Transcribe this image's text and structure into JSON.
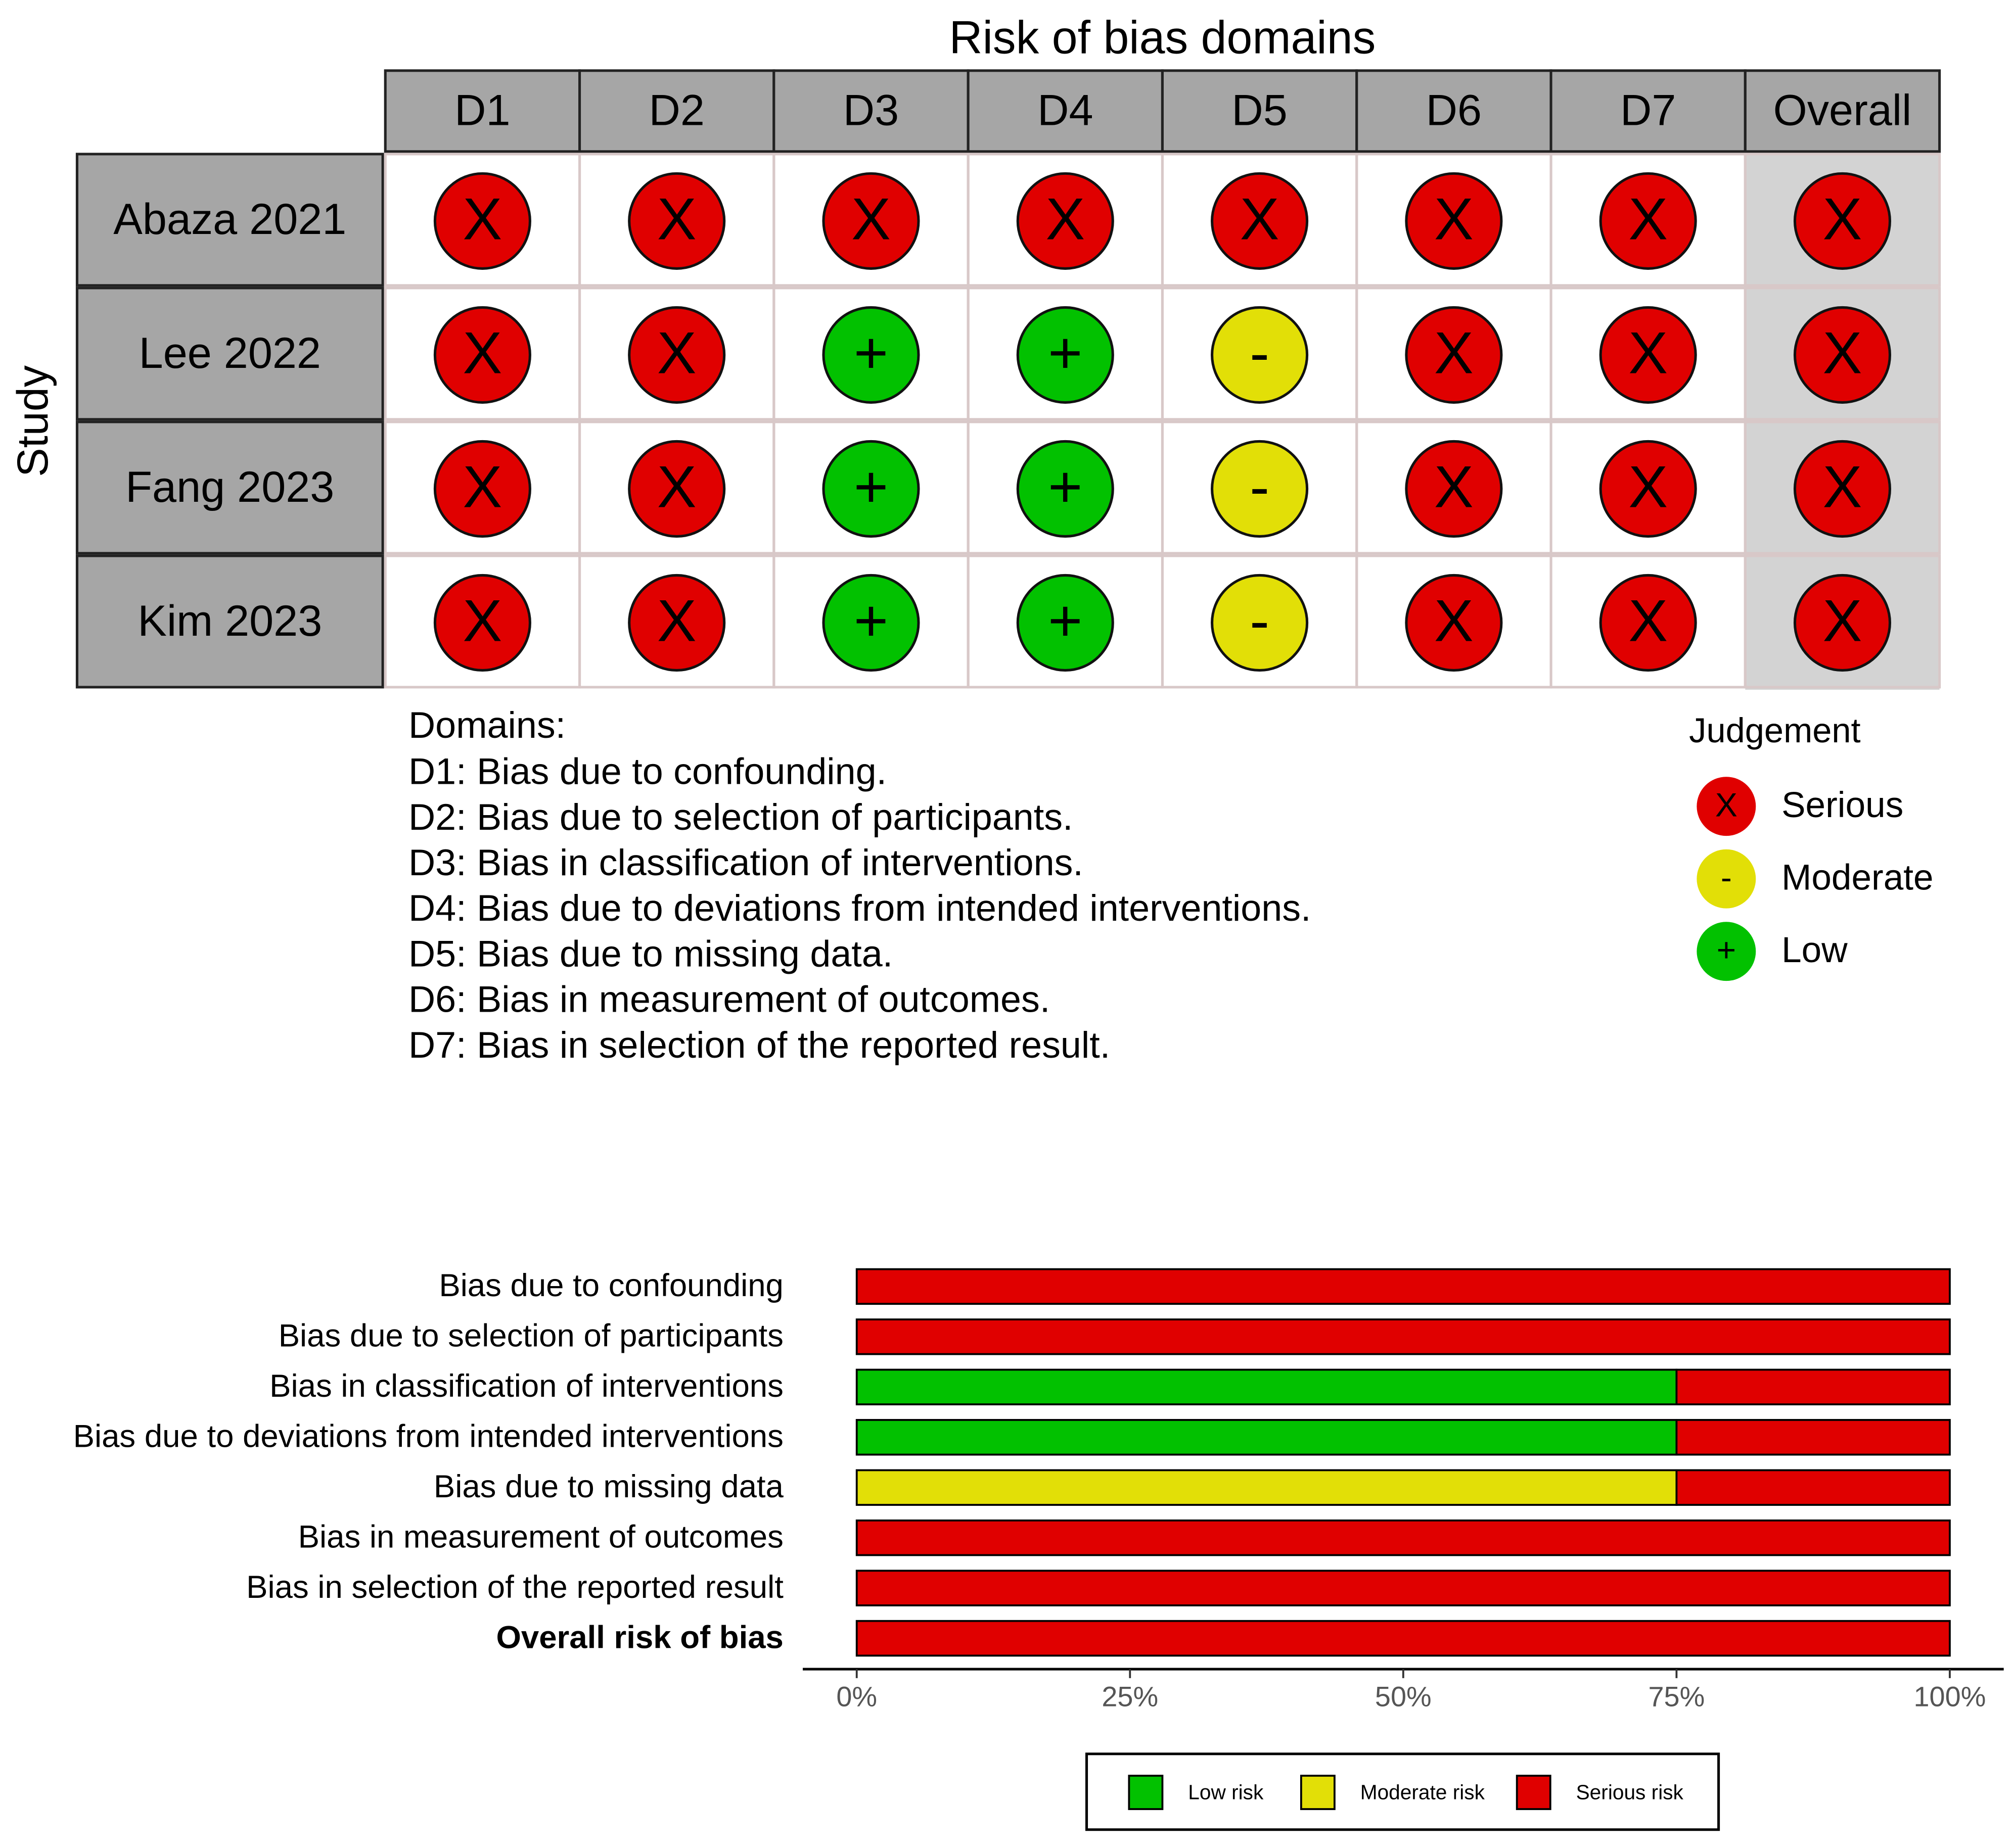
{
  "chart_data": [
    {
      "type": "traffic-light",
      "title": "Risk of bias domains",
      "y_label": "Study",
      "columns": [
        "D1",
        "D2",
        "D3",
        "D4",
        "D5",
        "D6",
        "D7",
        "Overall"
      ],
      "rows": [
        "Abaza 2021",
        "Lee 2022",
        "Fang 2023",
        "Kim 2023"
      ],
      "judgements": [
        [
          "X",
          "X",
          "X",
          "X",
          "X",
          "X",
          "X",
          "X"
        ],
        [
          "X",
          "X",
          "+",
          "+",
          "-",
          "X",
          "X",
          "X"
        ],
        [
          "X",
          "X",
          "+",
          "+",
          "-",
          "X",
          "X",
          "X"
        ],
        [
          "X",
          "X",
          "+",
          "+",
          "-",
          "X",
          "X",
          "X"
        ]
      ],
      "notes_title": "Domains:",
      "notes": [
        "D1: Bias due to confounding.",
        "D2: Bias due to selection of participants.",
        "D3: Bias in classification of interventions.",
        "D4: Bias due to deviations from intended interventions.",
        "D5: Bias due to missing data.",
        "D6: Bias in measurement of outcomes.",
        "D7: Bias in selection of the reported result."
      ],
      "legend_title": "Judgement",
      "legend": [
        {
          "symbol": "X",
          "name": "Serious",
          "color": "#e00000"
        },
        {
          "symbol": "-",
          "name": "Moderate",
          "color": "#e2df07"
        },
        {
          "symbol": "+",
          "name": "Low",
          "color": "#02c100"
        }
      ]
    },
    {
      "type": "bar",
      "orientation": "horizontal",
      "stacked": true,
      "categories": [
        "Bias due to confounding",
        "Bias due to selection of participants",
        "Bias in classification of interventions",
        "Bias due to deviations from intended interventions",
        "Bias due to missing data",
        "Bias in measurement of outcomes",
        "Bias in selection of the reported result",
        "Overall risk of bias"
      ],
      "series": [
        {
          "name": "Low risk",
          "color": "#02c100",
          "values": [
            0,
            0,
            75,
            75,
            0,
            0,
            0,
            0
          ]
        },
        {
          "name": "Moderate risk",
          "color": "#e2df07",
          "values": [
            0,
            0,
            0,
            0,
            75,
            0,
            0,
            0
          ]
        },
        {
          "name": "Serious risk",
          "color": "#e00000",
          "values": [
            100,
            100,
            25,
            25,
            25,
            100,
            100,
            100
          ]
        }
      ],
      "xlim": [
        0,
        100
      ],
      "xticks": [
        {
          "value": 0,
          "label": "0%"
        },
        {
          "value": 25,
          "label": "25%"
        },
        {
          "value": 50,
          "label": "50%"
        },
        {
          "value": 75,
          "label": "75%"
        },
        {
          "value": 100,
          "label": "100%"
        }
      ],
      "legend": "bottom"
    }
  ]
}
